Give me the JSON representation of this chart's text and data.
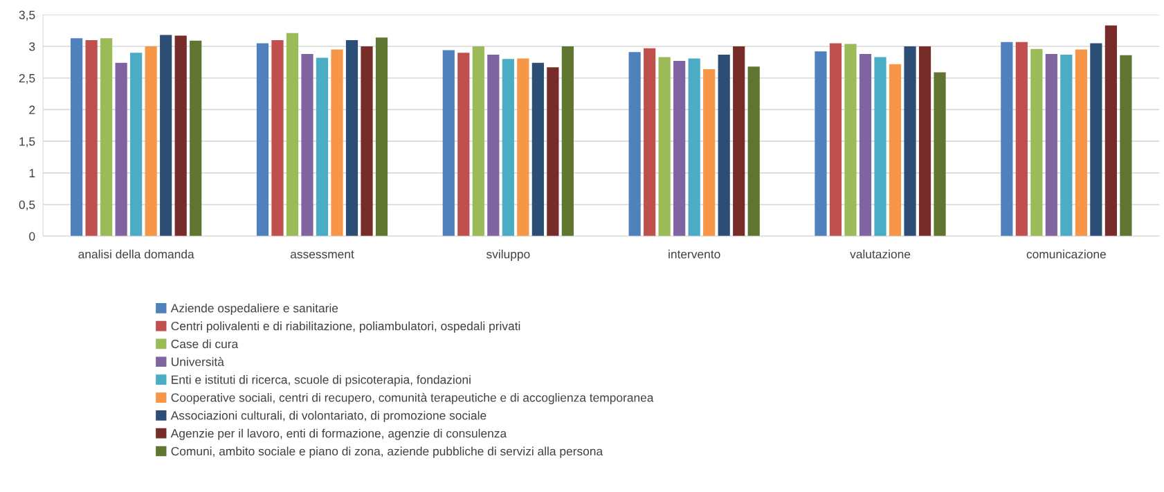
{
  "chart_data": {
    "type": "bar",
    "categories": [
      "analisi della domanda",
      "assessment",
      "sviluppo",
      "intervento",
      "valutazione",
      "comunicazione"
    ],
    "series": [
      {
        "name": "Aziende ospedaliere e sanitarie",
        "color": "#4f81bd",
        "values": [
          3.13,
          3.05,
          2.94,
          2.91,
          2.92,
          3.07
        ]
      },
      {
        "name": "Centri polivalenti e di riabilitazione, poliambulatori, ospedali privati",
        "color": "#c0504d",
        "values": [
          3.1,
          3.1,
          2.9,
          2.97,
          3.05,
          3.07
        ]
      },
      {
        "name": "Case di cura",
        "color": "#9bbb59",
        "values": [
          3.13,
          3.21,
          3.0,
          2.83,
          3.04,
          2.96
        ]
      },
      {
        "name": "Università",
        "color": "#8064a2",
        "values": [
          2.74,
          2.88,
          2.87,
          2.77,
          2.88,
          2.88
        ]
      },
      {
        "name": "Enti e istituti di ricerca, scuole di psicoterapia, fondazioni",
        "color": "#4bacc6",
        "values": [
          2.9,
          2.82,
          2.8,
          2.81,
          2.83,
          2.87
        ]
      },
      {
        "name": "Cooperative sociali, centri di recupero, comunità terapeutiche e di accoglienza temporanea",
        "color": "#f79646",
        "values": [
          3.0,
          2.95,
          2.81,
          2.64,
          2.72,
          2.95
        ]
      },
      {
        "name": "Associazioni culturali, di volontariato, di promozione sociale",
        "color": "#2c4d75",
        "values": [
          3.18,
          3.1,
          2.74,
          2.87,
          3.0,
          3.05
        ]
      },
      {
        "name": "Agenzie per il lavoro, enti di formazione, agenzie di consulenza",
        "color": "#772c2a",
        "values": [
          3.17,
          3.0,
          2.67,
          3.0,
          3.0,
          3.33
        ]
      },
      {
        "name": "Comuni, ambito sociale e piano di zona, aziende pubbliche di servizi alla persona",
        "color": "#5f7530",
        "values": [
          3.09,
          3.14,
          3.0,
          2.68,
          2.59,
          2.86
        ]
      }
    ],
    "ylim": [
      0,
      3.5
    ],
    "yticks": [
      0,
      {
        "value": 0.5,
        "label": "0,5"
      },
      1,
      {
        "value": 1.5,
        "label": "1,5"
      },
      2,
      {
        "value": 2.5,
        "label": "2,5"
      },
      3,
      {
        "value": 3.5,
        "label": "3,5"
      }
    ],
    "grid": "y",
    "legend": "bottom"
  }
}
